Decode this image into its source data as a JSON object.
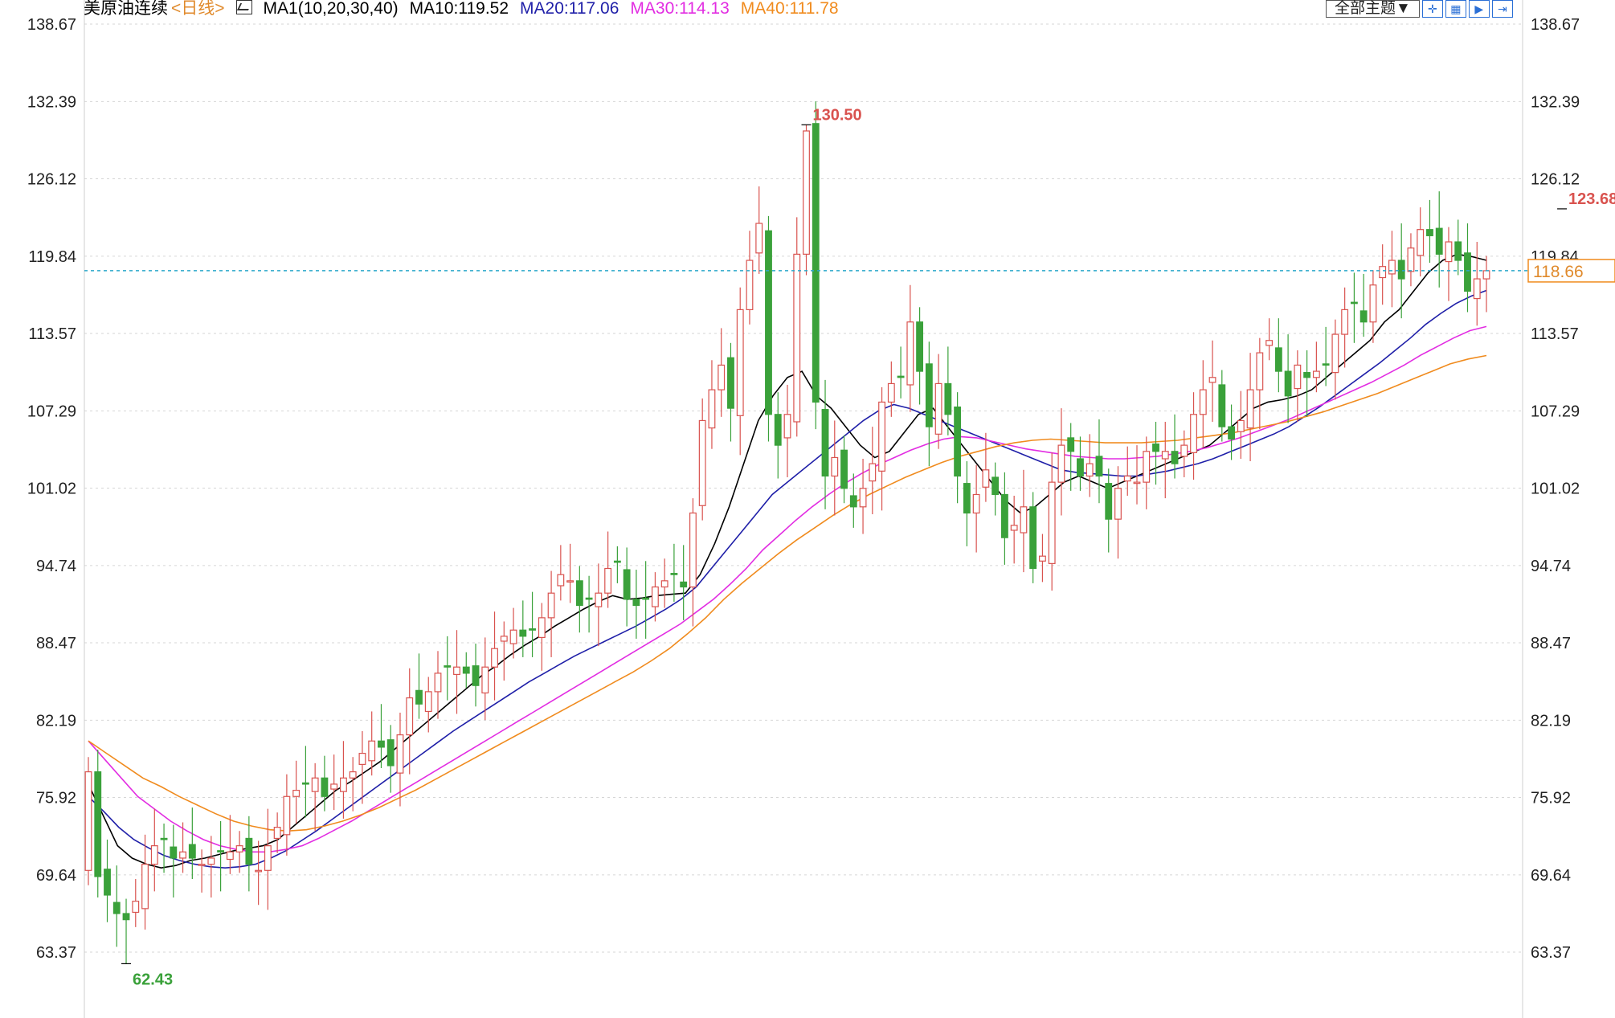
{
  "header": {
    "symbol": "美原油连续",
    "period": "<日线>",
    "ma_label": "MA1(10,20,30,40)",
    "ma10": "MA10:119.52",
    "ma20": "MA20:117.06",
    "ma30": "MA30:114.13",
    "ma40": "MA40:111.78"
  },
  "toolbar": {
    "theme_button": "全部主题▼",
    "icons": [
      "crosshair-icon",
      "grid-icon",
      "play-icon",
      "forward-icon"
    ]
  },
  "colors": {
    "up": "#d9534f",
    "down": "#3aa13a",
    "ma10": "#000000",
    "ma20": "#1f1fa8",
    "ma30": "#e22de2",
    "ma40": "#f08b1e",
    "grid": "#d6d6d6",
    "last_price_line": "#2aa7c9",
    "ma20_header": "#1f1fa8",
    "ma30_header": "#e22de2",
    "ma40_header": "#f08b1e"
  },
  "chart_data": {
    "type": "candlestick",
    "title": "美原油连续",
    "period": "日线",
    "y_axis_ticks": [
      "138.67",
      "132.39",
      "126.12",
      "119.84",
      "113.57",
      "107.29",
      "101.02",
      "94.74",
      "88.47",
      "82.19",
      "75.92",
      "69.64",
      "63.37"
    ],
    "ylim": [
      58.0,
      138.67
    ],
    "grid": "horizontal dashed",
    "last_price": 118.66,
    "last_price_label": "118.66",
    "max_label": "130.50",
    "max_value": 130.5,
    "max_index": 76,
    "recent_high_label": "123.68",
    "recent_high_value": 123.68,
    "recent_high_index": 156,
    "min_label": "62.43",
    "min_value": 62.43,
    "min_index": 4,
    "ma_values_latest": {
      "MA10": 119.52,
      "MA20": 117.06,
      "MA30": 114.13,
      "MA40": 111.78
    },
    "closes": [
      78.0,
      69.5,
      68.0,
      66.5,
      66.0,
      67.5,
      70.5,
      72.0,
      72.5,
      71.0,
      71.5,
      71.0,
      70.5,
      71.0,
      71.5,
      71.5,
      72.0,
      70.5,
      70.0,
      72.0,
      73.5,
      76.0,
      76.5,
      77.0,
      77.5,
      76.0,
      77.0,
      77.5,
      78.0,
      79.5,
      80.5,
      80.0,
      78.5,
      81.0,
      84.0,
      83.5,
      84.5,
      86.0,
      86.5,
      86.5,
      86.0,
      85.0,
      86.5,
      88.0,
      89.0,
      89.5,
      89.0,
      89.5,
      90.5,
      92.5,
      94.0,
      93.5,
      91.5,
      92.0,
      92.5,
      94.5,
      95.0,
      92.0,
      91.5,
      92.0,
      93.0,
      93.5,
      94.0,
      93.0,
      99.0,
      106.5,
      109.0,
      111.0,
      107.5,
      115.5,
      119.5,
      122.5,
      107.0,
      104.5,
      107.0,
      120.0,
      130.0,
      108.0,
      102.0,
      103.5,
      101.0,
      99.5,
      101.0,
      103.0,
      108.0,
      109.5,
      110.0,
      114.5,
      110.5,
      106.0,
      109.5,
      107.0,
      102.0,
      99.0,
      100.5,
      102.5,
      100.5,
      97.0,
      98.0,
      99.5,
      94.5,
      95.5,
      101.5,
      104.5,
      104.0,
      102.0,
      103.0,
      102.0,
      98.5,
      101.0,
      102.0,
      101.5,
      104.0,
      104.0,
      104.0,
      103.0,
      104.5,
      107.0,
      109.0,
      110.0,
      106.0,
      105.0,
      106.5,
      109.0,
      112.0,
      113.0,
      110.5,
      108.5,
      111.0,
      110.0,
      110.5,
      111.0,
      113.5,
      115.5,
      116.0,
      114.5,
      117.5,
      119.0,
      119.5,
      118.0,
      120.5,
      122.0,
      121.5,
      120.0,
      121.0,
      119.5,
      117.0,
      118.0,
      118.66
    ],
    "series": [
      {
        "name": "MA10",
        "values": [
          77.0,
          74.5,
          72.0,
          71.0,
          70.5,
          70.2,
          70.4,
          70.8,
          71.0,
          71.3,
          71.6,
          71.8,
          72.0,
          72.5,
          73.5,
          74.5,
          75.5,
          76.5,
          77.2,
          78.0,
          78.8,
          79.8,
          80.8,
          81.8,
          82.8,
          83.8,
          84.8,
          85.8,
          86.6,
          87.5,
          88.3,
          89.0,
          89.8,
          90.5,
          91.2,
          91.8,
          92.3,
          92.0,
          92.1,
          92.3,
          92.4,
          92.5,
          94.0,
          96.5,
          99.5,
          103.0,
          106.5,
          108.5,
          110.0,
          110.5,
          108.5,
          107.5,
          106.0,
          104.5,
          103.5,
          104.0,
          105.5,
          107.0,
          107.5,
          106.0,
          104.5,
          103.0,
          101.5,
          100.0,
          99.0,
          99.5,
          100.5,
          101.5,
          102.0,
          101.5,
          101.0,
          101.5,
          102.0,
          102.5,
          103.0,
          103.5,
          104.0,
          104.5,
          105.5,
          106.5,
          107.5,
          108.0,
          108.2,
          108.5,
          109.0,
          110.0,
          111.0,
          112.0,
          113.0,
          114.5,
          115.5,
          117.0,
          118.5,
          119.5,
          120.0,
          119.8,
          119.5
        ]
      },
      {
        "name": "MA20",
        "values": [
          76.0,
          74.8,
          73.5,
          72.5,
          71.8,
          71.2,
          70.8,
          70.5,
          70.3,
          70.2,
          70.3,
          70.5,
          71.0,
          71.6,
          72.4,
          73.2,
          74.1,
          75.0,
          75.9,
          76.8,
          77.7,
          78.6,
          79.5,
          80.4,
          81.3,
          82.1,
          82.9,
          83.7,
          84.5,
          85.3,
          86.0,
          86.7,
          87.4,
          88.0,
          88.6,
          89.2,
          89.8,
          90.5,
          91.2,
          92.0,
          93.0,
          94.5,
          96.0,
          97.5,
          99.0,
          100.5,
          101.5,
          102.5,
          103.5,
          104.5,
          105.5,
          106.5,
          107.3,
          107.8,
          107.5,
          107.0,
          106.5,
          106.0,
          105.5,
          105.0,
          104.5,
          104.0,
          103.5,
          103.0,
          102.5,
          102.3,
          102.2,
          102.1,
          102.0,
          102.0,
          102.2,
          102.4,
          102.7,
          103.0,
          103.4,
          103.9,
          104.4,
          104.9,
          105.4,
          106.0,
          106.8,
          107.6,
          108.5,
          109.4,
          110.3,
          111.2,
          112.2,
          113.2,
          114.3,
          115.2,
          116.0,
          116.6,
          117.06
        ]
      },
      {
        "name": "MA30",
        "values": [
          80.5,
          79.0,
          77.5,
          76.0,
          75.0,
          74.0,
          73.2,
          72.5,
          72.0,
          71.7,
          71.5,
          71.5,
          71.7,
          72.0,
          72.6,
          73.3,
          74.0,
          74.8,
          75.6,
          76.4,
          77.2,
          78.0,
          78.8,
          79.6,
          80.4,
          81.2,
          82.0,
          82.8,
          83.6,
          84.4,
          85.2,
          86.0,
          86.8,
          87.6,
          88.4,
          89.2,
          90.0,
          91.0,
          92.0,
          93.2,
          94.5,
          96.0,
          97.2,
          98.4,
          99.5,
          100.5,
          101.4,
          102.2,
          102.9,
          103.5,
          104.1,
          104.6,
          105.0,
          105.2,
          105.1,
          104.8,
          104.5,
          104.2,
          104.0,
          103.8,
          103.6,
          103.5,
          103.4,
          103.4,
          103.5,
          103.6,
          103.8,
          104.0,
          104.3,
          104.7,
          105.1,
          105.6,
          106.1,
          106.6,
          107.2,
          107.8,
          108.4,
          109.0,
          109.6,
          110.3,
          111.0,
          111.8,
          112.5,
          113.2,
          113.8,
          114.13
        ]
      },
      {
        "name": "MA40",
        "values": [
          80.5,
          79.5,
          78.5,
          77.5,
          76.8,
          76.0,
          75.3,
          74.6,
          74.0,
          73.6,
          73.3,
          73.2,
          73.3,
          73.6,
          74.0,
          74.5,
          75.1,
          75.8,
          76.5,
          77.3,
          78.1,
          78.9,
          79.7,
          80.5,
          81.3,
          82.1,
          82.9,
          83.7,
          84.5,
          85.3,
          86.1,
          87.0,
          88.0,
          89.2,
          90.5,
          92.0,
          93.3,
          94.5,
          95.7,
          96.8,
          97.8,
          98.8,
          99.7,
          100.5,
          101.2,
          101.9,
          102.5,
          103.1,
          103.6,
          104.0,
          104.4,
          104.7,
          104.9,
          105.0,
          104.9,
          104.8,
          104.7,
          104.7,
          104.7,
          104.8,
          104.9,
          105.1,
          105.3,
          105.5,
          105.8,
          106.1,
          106.4,
          106.8,
          107.2,
          107.7,
          108.2,
          108.7,
          109.3,
          109.9,
          110.5,
          111.1,
          111.5,
          111.78
        ]
      }
    ]
  }
}
